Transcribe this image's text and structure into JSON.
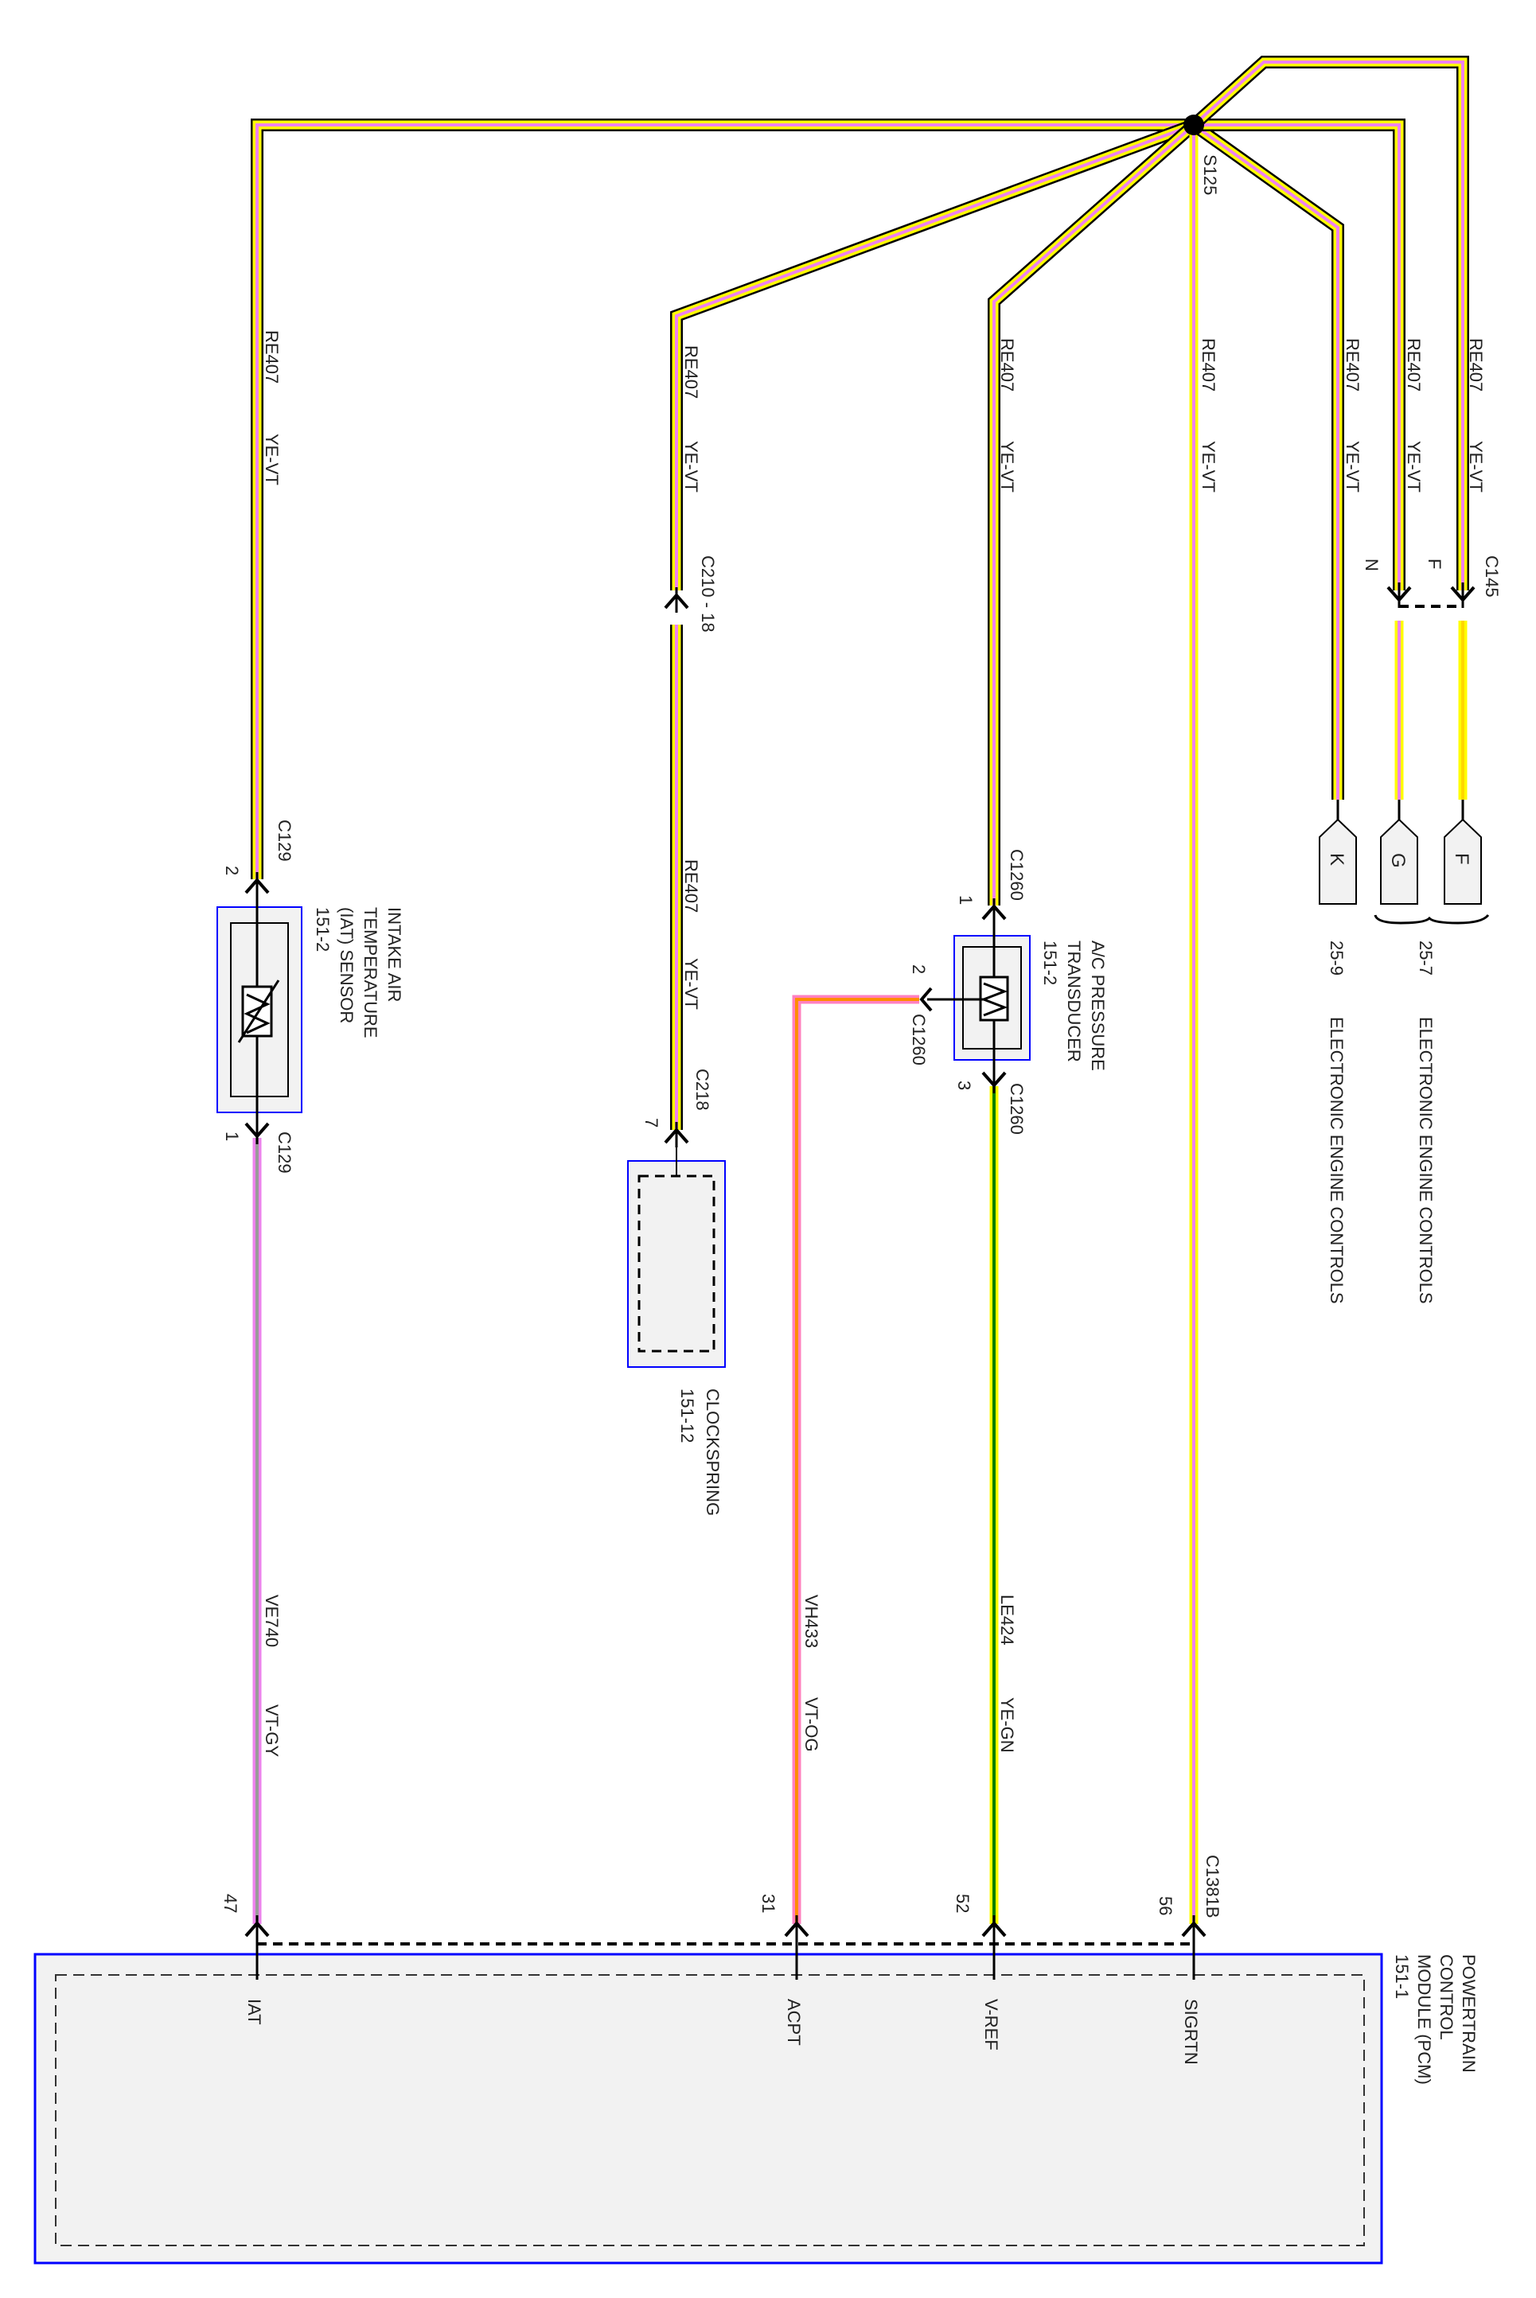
{
  "colors": {
    "yellow": "#ffff00",
    "violet": "#ee82ee",
    "gray": "#9a9a9a",
    "orange": "#ff8c00",
    "green": "#008000",
    "pink": "#ff80c0",
    "box_border": "#0000ff",
    "box_fill": "#f2f2f2"
  },
  "splice": "S125",
  "wires": {
    "iat_top": {
      "circuit": "RE407",
      "color": "YE-VT"
    },
    "iat_bottom": {
      "circuit": "VE740",
      "color": "VT-GY"
    },
    "clock_top": {
      "circuit": "RE407",
      "color": "YE-VT"
    },
    "clock_mid": {
      "circuit": "RE407",
      "color": "YE-VT"
    },
    "acpt": {
      "circuit": "VH433",
      "color": "VT-OG"
    },
    "ac_top": {
      "circuit": "RE407",
      "color": "YE-VT"
    },
    "vref": {
      "circuit": "LE424",
      "color": "YE-GN"
    },
    "sigrtn": {
      "circuit": "RE407",
      "color": "YE-VT"
    },
    "k": {
      "circuit": "RE407",
      "color": "YE-VT"
    },
    "g": {
      "circuit": "RE407",
      "color": "YE-VT"
    },
    "f": {
      "circuit": "RE407",
      "color": "YE-VT"
    }
  },
  "connectors": {
    "c129_top": {
      "name": "C129",
      "pin": "2"
    },
    "c129_bottom": {
      "name": "C129",
      "pin": "1"
    },
    "c210": {
      "name": "C210 - 18"
    },
    "c218": {
      "name": "C218",
      "pin": "7"
    },
    "c1260_1": {
      "name": "C1260",
      "pin": "1"
    },
    "c1260_2": {
      "name": "C1260",
      "pin": "2"
    },
    "c1260_3": {
      "name": "C1260",
      "pin": "3"
    },
    "c145": {
      "name": "C145",
      "pin_n": "N",
      "pin_f": "F"
    },
    "c1381b": {
      "name": "C1381B"
    },
    "pcm_pins": {
      "iat": "47",
      "acpt": "31",
      "vref": "52",
      "sigrtn": "56"
    }
  },
  "components": {
    "iat_sensor": {
      "lines": [
        "INTAKE AIR",
        "TEMPERATURE",
        "(IAT) SENSOR",
        "151-2"
      ]
    },
    "ac_transducer": {
      "lines": [
        "A/C PRESSURE",
        "TRANSDUCER",
        "151-2"
      ]
    },
    "clockspring": {
      "lines": [
        "CLOCKSPRING",
        "151-12"
      ]
    },
    "pcm": {
      "lines": [
        "POWERTRAIN",
        "CONTROL",
        "MODULE (PCM)",
        "151-1"
      ],
      "pins": {
        "iat": "IAT",
        "acpt": "ACPT",
        "vref": "V-REF",
        "sigrtn": "SIGRTN"
      }
    }
  },
  "references": {
    "tags": {
      "k": "K",
      "g": "G",
      "f": "F"
    },
    "ref_25_9": {
      "page": "25-9",
      "label": "ELECTRONIC ENGINE CONTROLS"
    },
    "ref_25_7": {
      "page": "25-7",
      "label": "ELECTRONIC ENGINE CONTROLS"
    }
  }
}
